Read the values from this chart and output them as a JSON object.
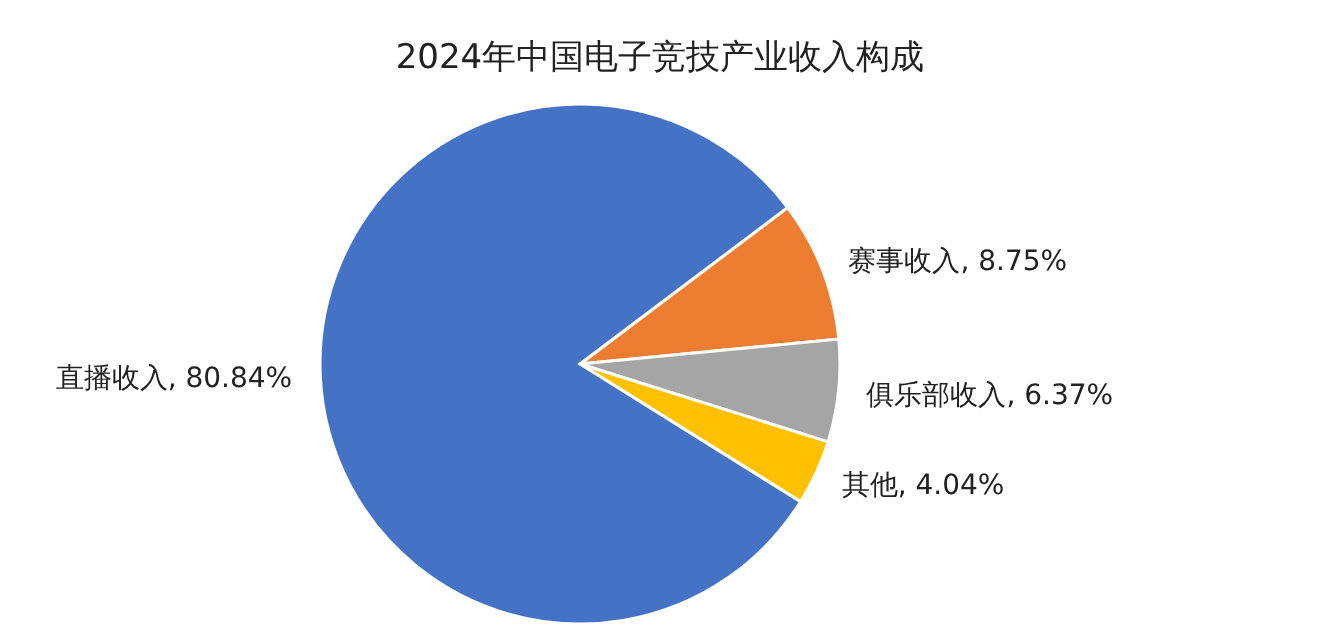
{
  "chart_data": {
    "type": "pie",
    "title": "2024年中国电子竞技产业收入构成",
    "categories": [
      "赛事收入",
      "俱乐部收入",
      "其他",
      "直播收入"
    ],
    "values": [
      8.75,
      6.37,
      4.04,
      80.84
    ],
    "value_labels": [
      "8.75%",
      "6.37%",
      "4.04%",
      "80.84%"
    ],
    "colors": [
      "#ed7d31",
      "#a5a5a5",
      "#ffc000",
      "#4472c4"
    ]
  }
}
